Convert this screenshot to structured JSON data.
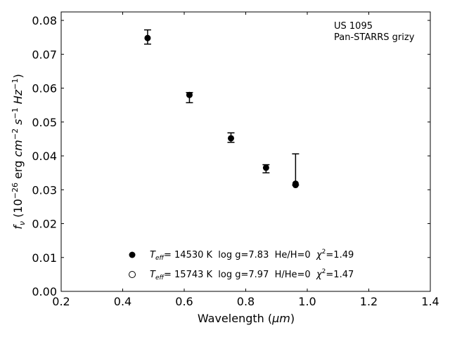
{
  "chart_data": {
    "type": "scatter",
    "xlabel_text": "Wavelength (",
    "xlabel_unit": "μm",
    "xlabel_close": ")",
    "ylabel_f": "f",
    "ylabel_nu": "ν",
    "ylabel_mid": " (10",
    "ylabel_exp": "−26",
    "ylabel_units": " erg ",
    "ylabel_cm": "cm",
    "ylabel_cm_exp": "−2",
    "ylabel_s": " s",
    "ylabel_s_exp": "−1",
    "ylabel_hz": " Hz",
    "ylabel_hz_exp": "−1",
    "ylabel_close": ")",
    "xlim": [
      0.2,
      1.4
    ],
    "ylim": [
      0.0,
      0.0825
    ],
    "xticks": [
      "0.2",
      "0.4",
      "0.6",
      "0.8",
      "1.0",
      "1.2",
      "1.4"
    ],
    "yticks": [
      "0.00",
      "0.01",
      "0.02",
      "0.03",
      "0.04",
      "0.05",
      "0.06",
      "0.07",
      "0.08"
    ],
    "annotation": [
      "US 1095",
      "Pan-STARRS grizy"
    ],
    "series": [
      {
        "marker": "filled-circle",
        "label_T": "T",
        "label_eff": "eff",
        "label_rest": "= 14530 K  log g=7.83  He/H=0  ",
        "label_chi": "χ",
        "label_chi_exp": "2",
        "label_chi_val": "=1.49"
      },
      {
        "marker": "open-circle",
        "label_T": "T",
        "label_eff": "eff",
        "label_rest": "= 15743 K  log g=7.97  H/He=0  ",
        "label_chi": "χ",
        "label_chi_exp": "2",
        "label_chi_val": "=1.47"
      }
    ],
    "points": [
      {
        "x": 0.481,
        "y": 0.0748,
        "ylo": 0.073,
        "yhi": 0.0772
      },
      {
        "x": 0.617,
        "y": 0.058,
        "ylo": 0.0557,
        "yhi": 0.0587
      },
      {
        "x": 0.752,
        "y": 0.0452,
        "ylo": 0.044,
        "yhi": 0.0468
      },
      {
        "x": 0.866,
        "y": 0.0365,
        "ylo": 0.035,
        "yhi": 0.0374
      },
      {
        "x": 0.962,
        "y": 0.0314,
        "ylo": 0.0314,
        "yhi": 0.0406
      }
    ],
    "model_points": [
      {
        "x": 0.962,
        "y": 0.0318
      }
    ],
    "grid": false,
    "legend_position": "lower-center"
  }
}
